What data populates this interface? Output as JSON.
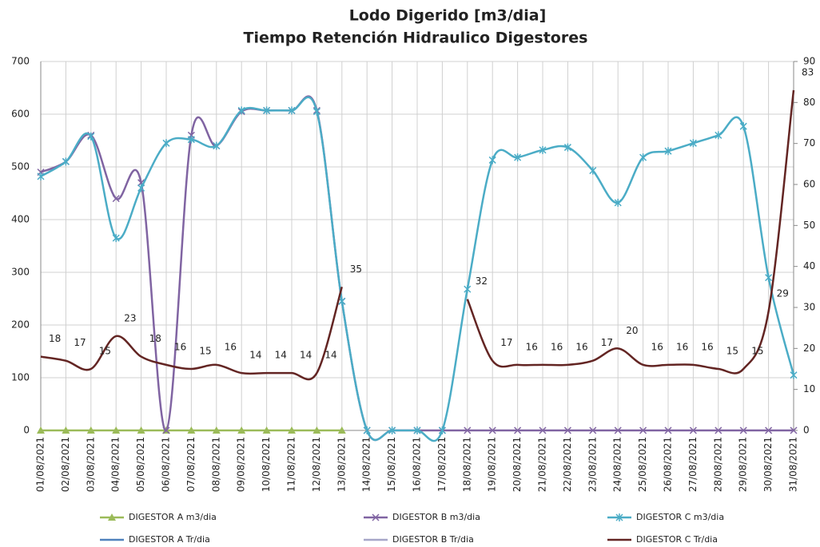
{
  "chart_data": {
    "type": "line",
    "title": "Lodo Digerido  [m3/dia]",
    "subtitle": "Tiempo Retención Hidraulico Digestores",
    "categories": [
      "01/08/2021",
      "02/08/2021",
      "03/08/2021",
      "04/08/2021",
      "05/08/2021",
      "06/08/2021",
      "07/08/2021",
      "08/08/2021",
      "09/08/2021",
      "10/08/2021",
      "11/08/2021",
      "12/08/2021",
      "13/08/2021",
      "14/08/2021",
      "15/08/2021",
      "16/08/2021",
      "17/08/2021",
      "18/08/2021",
      "19/08/2021",
      "20/08/2021",
      "21/08/2021",
      "22/08/2021",
      "23/08/2021",
      "24/08/2021",
      "25/08/2021",
      "26/08/2021",
      "27/08/2021",
      "28/08/2021",
      "29/08/2021",
      "30/08/2021",
      "31/08/2021"
    ],
    "ylim": [
      0,
      700
    ],
    "yticks": [
      0,
      100,
      200,
      300,
      400,
      500,
      600,
      700
    ],
    "y2lim": [
      0,
      90
    ],
    "y2ticks": [
      0,
      10,
      20,
      30,
      40,
      50,
      60,
      70,
      80,
      90
    ],
    "grid": true,
    "smooth": true,
    "series": [
      {
        "name": "DIGESTOR A m3/dia",
        "color": "#9bbb59",
        "marker": "triangle",
        "values": [
          0,
          0,
          0,
          0,
          0,
          0,
          0,
          0,
          0,
          0,
          0,
          0,
          0,
          null,
          null,
          null,
          null,
          null,
          null,
          null,
          null,
          null,
          null,
          null,
          null,
          null,
          null,
          null,
          null,
          null,
          null
        ]
      },
      {
        "name": "DIGESTOR B m3/dia",
        "color": "#8064a2",
        "marker": "x",
        "values": [
          490,
          510,
          560,
          440,
          470,
          0,
          560,
          540,
          605,
          607,
          607,
          607,
          245,
          0,
          0,
          0,
          0,
          0,
          0,
          0,
          0,
          0,
          0,
          0,
          0,
          0,
          0,
          0,
          0,
          0,
          0
        ]
      },
      {
        "name": "DIGESTOR C m3/dia",
        "color": "#4bacc6",
        "marker": "star",
        "values": [
          482,
          510,
          558,
          365,
          460,
          545,
          552,
          540,
          607,
          607,
          607,
          605,
          245,
          0,
          0,
          0,
          0,
          268,
          513,
          518,
          532,
          537,
          493,
          432,
          518,
          530,
          545,
          560,
          577,
          290,
          105
        ]
      },
      {
        "name": "DIGESTOR A Tr/dia",
        "color": "#4f81bd",
        "axis": "y2",
        "values": [
          null,
          null,
          null,
          null,
          null,
          null,
          null,
          null,
          null,
          null,
          null,
          null,
          null,
          null,
          null,
          null,
          null,
          null,
          null,
          null,
          null,
          null,
          null,
          null,
          null,
          null,
          null,
          null,
          null,
          null,
          null
        ]
      },
      {
        "name": "DIGESTOR B Tr/dia",
        "color": "#a6a6c8",
        "axis": "y2",
        "values": [
          null,
          null,
          null,
          null,
          null,
          null,
          null,
          null,
          null,
          null,
          null,
          null,
          null,
          null,
          null,
          null,
          null,
          null,
          null,
          null,
          null,
          null,
          null,
          null,
          null,
          null,
          null,
          null,
          null,
          null,
          null
        ]
      },
      {
        "name": "DIGESTOR C Tr/dia",
        "color": "#632523",
        "axis": "y2",
        "data_labels": true,
        "values": [
          18,
          17,
          15,
          23,
          18,
          16,
          15,
          16,
          14,
          14,
          14,
          14,
          35,
          null,
          null,
          null,
          null,
          32,
          17,
          16,
          16,
          16,
          17,
          20,
          16,
          16,
          16,
          15,
          15,
          29,
          83
        ]
      }
    ]
  }
}
